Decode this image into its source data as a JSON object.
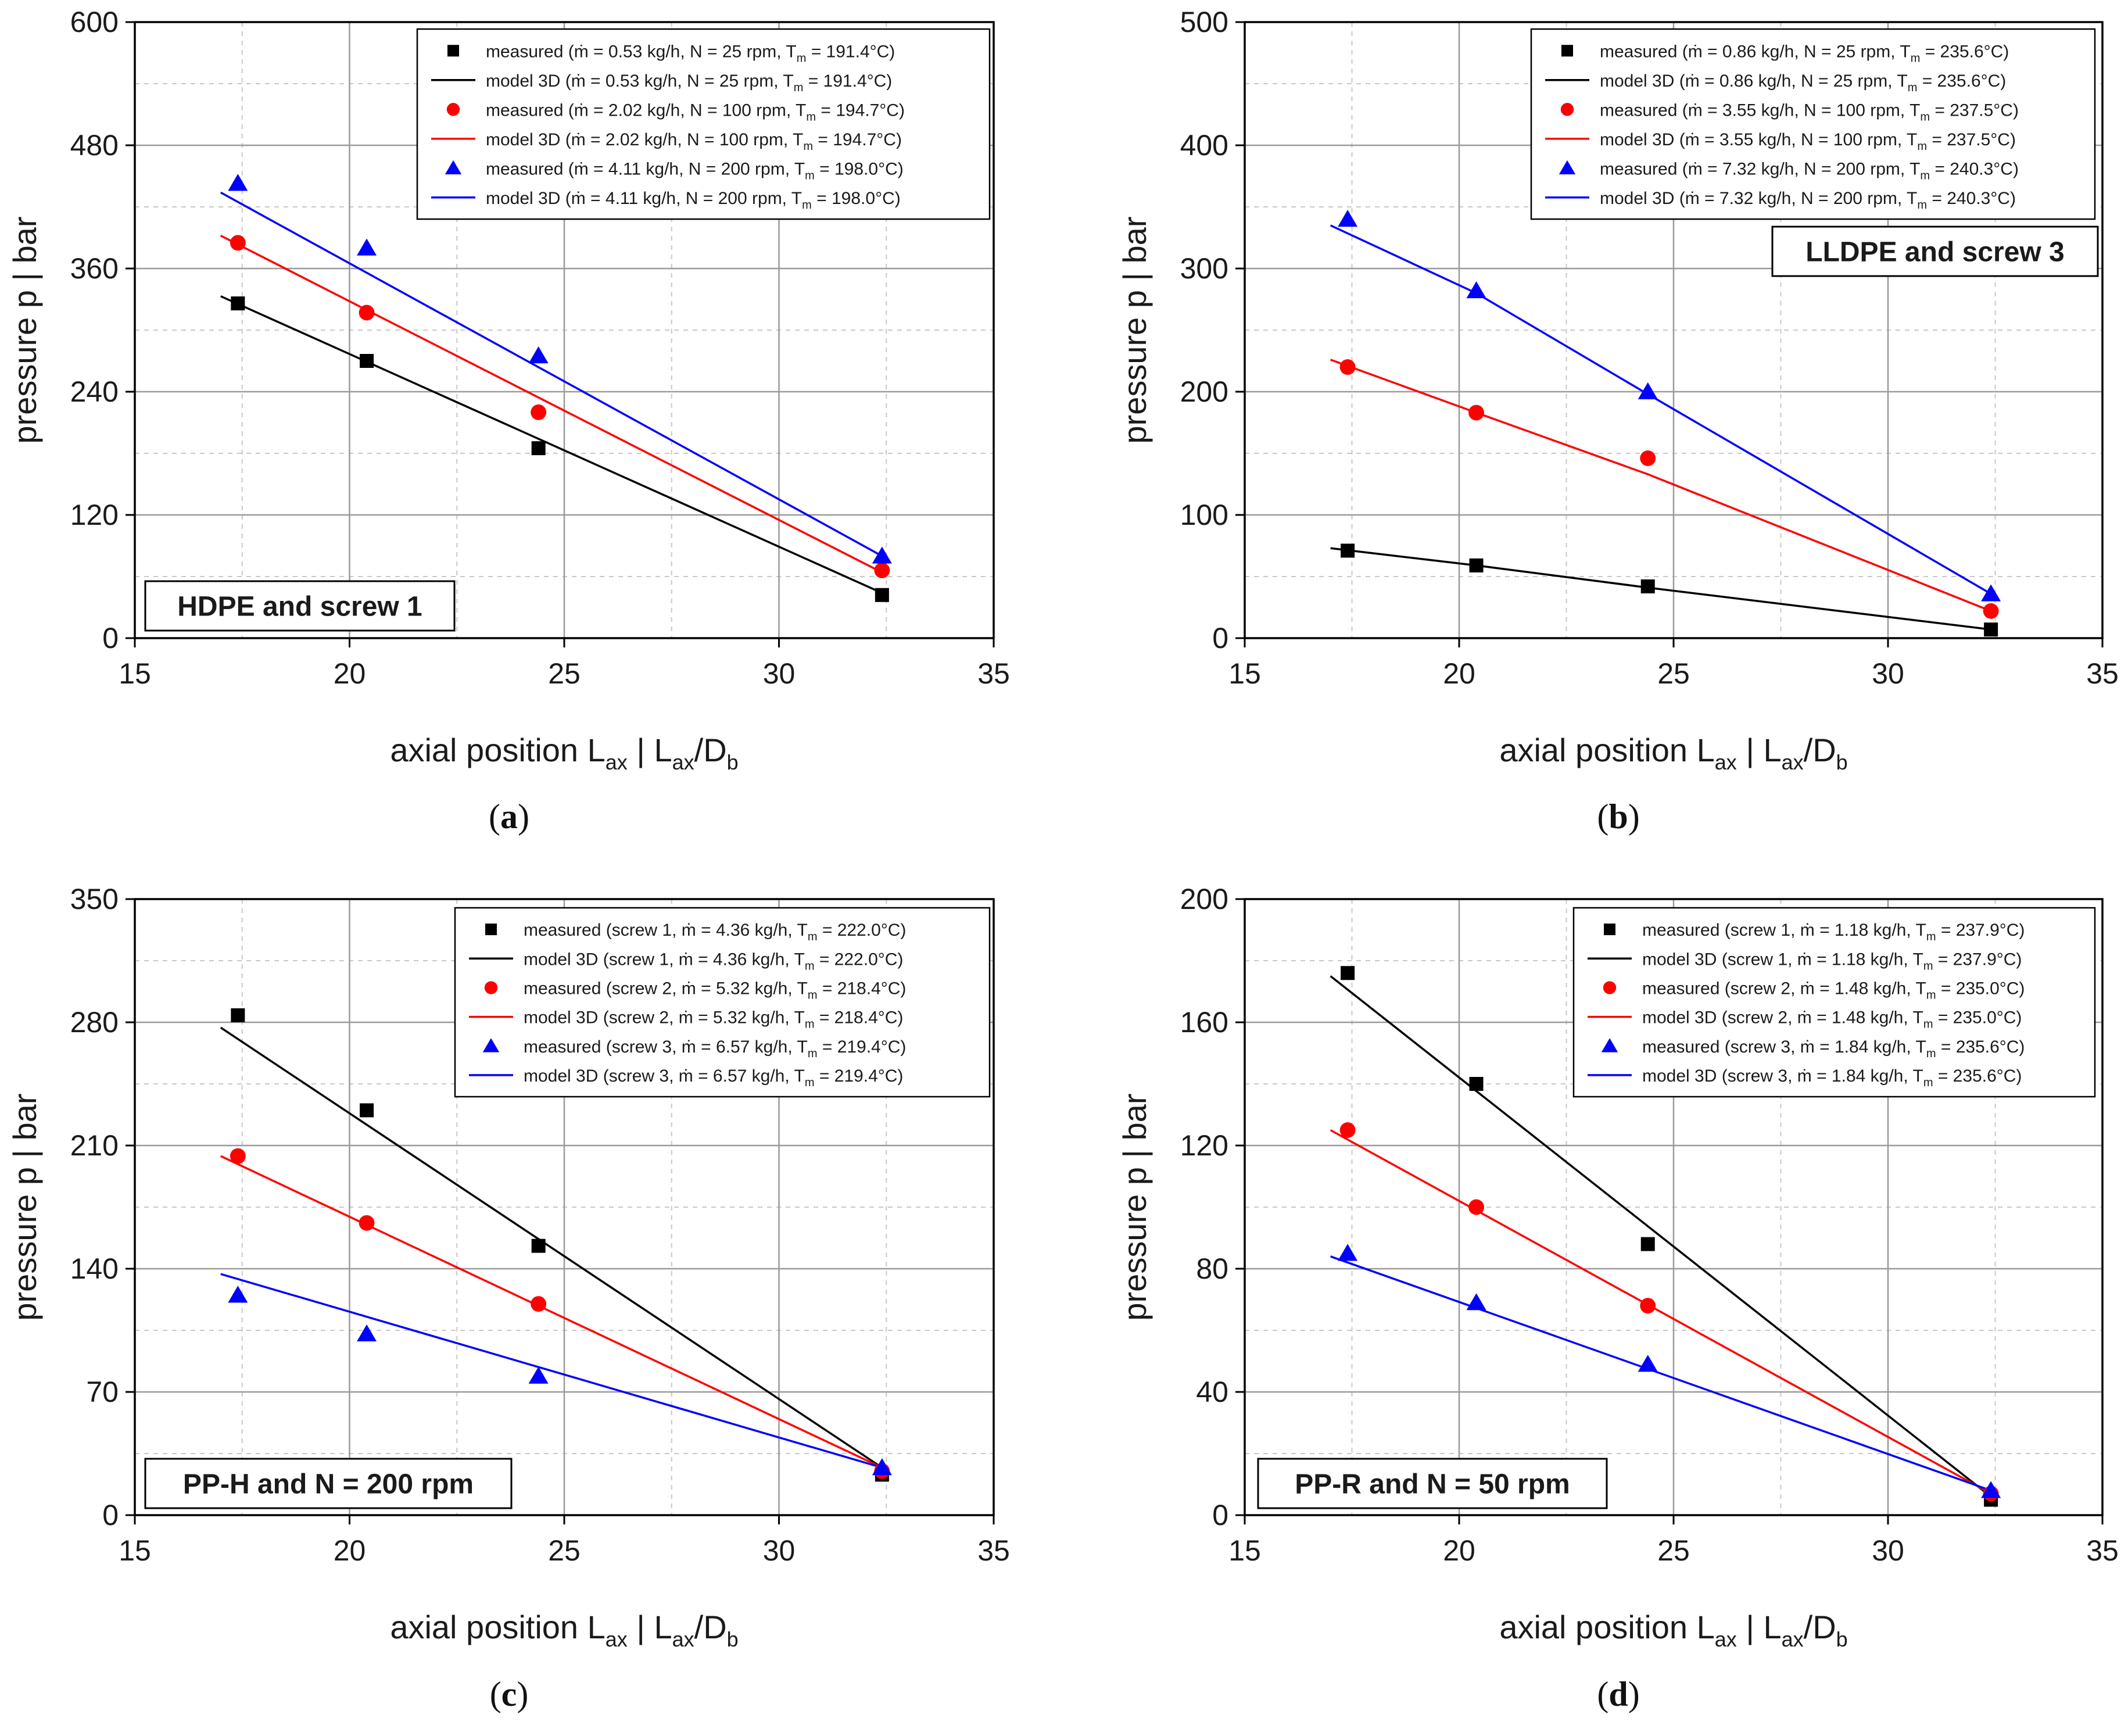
{
  "chart_data": [
    {
      "type": "scatter",
      "panel_label": "a",
      "annotation": "HDPE and screw 1",
      "xlabel": {
        "main": "axial position L",
        "sub1": "ax",
        "sep": "|",
        "frac": "L",
        "sub2": "ax",
        "slash": "/D",
        "sub3": "b"
      },
      "ylabel": "pressure p  |  bar",
      "xlim": [
        15,
        35
      ],
      "ylim": [
        0,
        600
      ],
      "xticks": [
        15,
        20,
        25,
        30,
        35
      ],
      "yticks": [
        0,
        120,
        240,
        360,
        480,
        600
      ],
      "grid": true,
      "legend_position": "top-right",
      "series": [
        {
          "name": "measured (ṁ = 0.53 kg/h, N = 25 rpm, T",
          "sub": "m",
          "tail": " = 191.4°C)",
          "kind": "measured",
          "marker": "square",
          "color": "#000000",
          "x": [
            17.4,
            20.4,
            24.4,
            32.4
          ],
          "y": [
            326,
            270,
            185,
            42
          ]
        },
        {
          "name": "model 3D (ṁ = 0.53 kg/h, N = 25 rpm, T",
          "sub": "m",
          "tail": " = 191.4°C)",
          "kind": "model",
          "color": "#000000",
          "x": [
            17.0,
            32.4
          ],
          "y": [
            333,
            44
          ]
        },
        {
          "name": "measured (ṁ = 2.02 kg/h, N = 100 rpm, T",
          "sub": "m",
          "tail": " = 194.7°C)",
          "kind": "measured",
          "marker": "circle",
          "color": "#ff0000",
          "x": [
            17.4,
            20.4,
            24.4,
            32.4
          ],
          "y": [
            385,
            317,
            220,
            66
          ]
        },
        {
          "name": "model 3D (ṁ = 2.02 kg/h, N = 100 rpm, T",
          "sub": "m",
          "tail": " = 194.7°C)",
          "kind": "model",
          "color": "#ff0000",
          "x": [
            17.0,
            32.4
          ],
          "y": [
            392,
            64
          ]
        },
        {
          "name": "measured (ṁ = 4.11 kg/h, N = 200 rpm, T",
          "sub": "m",
          "tail": " = 198.0°C)",
          "kind": "measured",
          "marker": "triangle",
          "color": "#0000ff",
          "x": [
            17.4,
            20.4,
            24.4,
            32.4
          ],
          "y": [
            443,
            380,
            275,
            80
          ]
        },
        {
          "name": "model 3D (ṁ = 4.11 kg/h, N = 200 rpm, T",
          "sub": "m",
          "tail": " = 198.0°C)",
          "kind": "model",
          "color": "#0000ff",
          "x": [
            17.0,
            32.4
          ],
          "y": [
            434,
            80
          ]
        }
      ]
    },
    {
      "type": "scatter",
      "panel_label": "b",
      "annotation": "LLDPE and screw 3",
      "xlabel": {
        "main": "axial position L",
        "sub1": "ax",
        "sep": "|",
        "frac": "L",
        "sub2": "ax",
        "slash": "/D",
        "sub3": "b"
      },
      "ylabel": "pressure p  |  bar",
      "xlim": [
        15,
        35
      ],
      "ylim": [
        0,
        500
      ],
      "xticks": [
        15,
        20,
        25,
        30,
        35
      ],
      "yticks": [
        0,
        100,
        200,
        300,
        400,
        500
      ],
      "grid": true,
      "legend_position": "top-right",
      "series": [
        {
          "name": "measured (ṁ = 0.86 kg/h, N = 25 rpm, T",
          "sub": "m",
          "tail": " = 235.6°C)",
          "kind": "measured",
          "marker": "square",
          "color": "#000000",
          "x": [
            17.4,
            20.4,
            24.4,
            32.4
          ],
          "y": [
            71,
            59,
            42,
            7
          ]
        },
        {
          "name": "model 3D (ṁ = 0.86 kg/h, N = 25 rpm, T",
          "sub": "m",
          "tail": " = 235.6°C)",
          "kind": "model",
          "color": "#000000",
          "x": [
            17.0,
            20.4,
            24.4,
            32.4
          ],
          "y": [
            73,
            59,
            41,
            7
          ]
        },
        {
          "name": "measured (ṁ = 3.55 kg/h, N = 100 rpm, T",
          "sub": "m",
          "tail": " = 237.5°C)",
          "kind": "measured",
          "marker": "circle",
          "color": "#ff0000",
          "x": [
            17.4,
            20.4,
            24.4,
            32.4
          ],
          "y": [
            220,
            183,
            146,
            22
          ]
        },
        {
          "name": "model 3D (ṁ = 3.55 kg/h, N = 100 rpm, T",
          "sub": "m",
          "tail": " = 237.5°C)",
          "kind": "model",
          "color": "#ff0000",
          "x": [
            17.0,
            20.4,
            24.4,
            32.4
          ],
          "y": [
            226,
            183,
            133,
            22
          ]
        },
        {
          "name": "measured (ṁ = 7.32 kg/h, N = 200 rpm, T",
          "sub": "m",
          "tail": " = 240.3°C)",
          "kind": "measured",
          "marker": "triangle",
          "color": "#0000ff",
          "x": [
            17.4,
            20.4,
            24.4,
            32.4
          ],
          "y": [
            340,
            282,
            200,
            36
          ]
        },
        {
          "name": "model 3D (ṁ = 7.32 kg/h, N = 200 rpm, T",
          "sub": "m",
          "tail": " = 240.3°C)",
          "kind": "model",
          "color": "#0000ff",
          "x": [
            17.0,
            20.4,
            24.4,
            32.4
          ],
          "y": [
            335,
            280,
            198,
            36
          ]
        }
      ]
    },
    {
      "type": "scatter",
      "panel_label": "c",
      "annotation": "PP-H and N = 200 rpm",
      "xlabel": {
        "main": "axial position L",
        "sub1": "ax",
        "sep": "|",
        "frac": "L",
        "sub2": "ax",
        "slash": "/D",
        "sub3": "b"
      },
      "ylabel": "pressure p  |  bar",
      "xlim": [
        15,
        35
      ],
      "ylim": [
        0,
        350
      ],
      "xticks": [
        15,
        20,
        25,
        30,
        35
      ],
      "yticks": [
        0,
        70,
        140,
        210,
        280,
        350
      ],
      "grid": true,
      "legend_position": "top-right",
      "series": [
        {
          "name": "measured (screw 1, ṁ = 4.36 kg/h, T",
          "sub": "m",
          "tail": " = 222.0°C)",
          "kind": "measured",
          "marker": "square",
          "color": "#000000",
          "x": [
            17.4,
            20.4,
            24.4,
            32.4
          ],
          "y": [
            284,
            230,
            153,
            23
          ]
        },
        {
          "name": "model 3D (screw 1, ṁ = 4.36 kg/h, T",
          "sub": "m",
          "tail": " = 222.0°C)",
          "kind": "model",
          "color": "#000000",
          "x": [
            17.0,
            32.4
          ],
          "y": [
            277,
            27
          ]
        },
        {
          "name": "measured (screw 2, ṁ = 5.32 kg/h, T",
          "sub": "m",
          "tail": " = 218.4°C)",
          "kind": "measured",
          "marker": "circle",
          "color": "#ff0000",
          "x": [
            17.4,
            20.4,
            24.4,
            32.4
          ],
          "y": [
            204,
            166,
            120,
            25
          ]
        },
        {
          "name": "model 3D (screw 2, ṁ = 5.32 kg/h, T",
          "sub": "m",
          "tail": " = 218.4°C)",
          "kind": "model",
          "color": "#ff0000",
          "x": [
            17.0,
            32.4
          ],
          "y": [
            204,
            27
          ]
        },
        {
          "name": "measured (screw 3, ṁ = 6.57 kg/h,  T",
          "sub": "m",
          "tail": " = 219.4°C)",
          "kind": "measured",
          "marker": "triangle",
          "color": "#0000ff",
          "x": [
            17.4,
            20.4,
            24.4,
            32.4
          ],
          "y": [
            125,
            103,
            79,
            27
          ]
        },
        {
          "name": "model 3D (screw 3, ṁ = 6.57 kg/h,  T",
          "sub": "m",
          "tail": " = 219.4°C)",
          "kind": "model",
          "color": "#0000ff",
          "x": [
            17.0,
            32.4
          ],
          "y": [
            137,
            27
          ]
        }
      ]
    },
    {
      "type": "scatter",
      "panel_label": "d",
      "annotation": "PP-R and N = 50 rpm",
      "xlabel": {
        "main": "axial position L",
        "sub1": "ax",
        "sep": "|",
        "frac": "L",
        "sub2": "ax",
        "slash": "/D",
        "sub3": "b"
      },
      "ylabel": "pressure p  |  bar",
      "xlim": [
        15,
        35
      ],
      "ylim": [
        0,
        200
      ],
      "xticks": [
        15,
        20,
        25,
        30,
        35
      ],
      "yticks": [
        0,
        40,
        80,
        120,
        160,
        200
      ],
      "grid": true,
      "legend_position": "top-right",
      "series": [
        {
          "name": "measured (screw 1, ṁ = 1.18 kg/h, T",
          "sub": "m",
          "tail": " = 237.9°C)",
          "kind": "measured",
          "marker": "square",
          "color": "#000000",
          "x": [
            17.4,
            20.4,
            24.4,
            32.4
          ],
          "y": [
            176,
            140,
            88,
            5
          ]
        },
        {
          "name": "model 3D (screw 1, ṁ = 1.18 kg/h, T",
          "sub": "m",
          "tail": " = 237.9°C)",
          "kind": "model",
          "color": "#000000",
          "x": [
            17.0,
            32.4
          ],
          "y": [
            175,
            6
          ]
        },
        {
          "name": "measured (screw 2, ṁ = 1.48 kg/h, T",
          "sub": "m",
          "tail": " = 235.0°C)",
          "kind": "measured",
          "marker": "circle",
          "color": "#ff0000",
          "x": [
            17.4,
            20.4,
            24.4,
            32.4
          ],
          "y": [
            125,
            100,
            68,
            7
          ]
        },
        {
          "name": "model 3D (screw 2, ṁ = 1.48 kg/h, T",
          "sub": "m",
          "tail": " = 235.0°C)",
          "kind": "model",
          "color": "#ff0000",
          "x": [
            17.0,
            32.4
          ],
          "y": [
            125,
            7
          ]
        },
        {
          "name": "measured (screw 3, ṁ = 1.84 kg/h,  T",
          "sub": "m",
          "tail": " = 235.6°C)",
          "kind": "measured",
          "marker": "triangle",
          "color": "#0000ff",
          "x": [
            17.4,
            20.4,
            24.4,
            32.4
          ],
          "y": [
            85,
            69,
            49,
            8
          ]
        },
        {
          "name": "model 3D (screw 3, ṁ = 1.84 kg/h,  T",
          "sub": "m",
          "tail": " = 235.6°C)",
          "kind": "model",
          "color": "#0000ff",
          "x": [
            17.0,
            32.4
          ],
          "y": [
            84,
            8
          ]
        }
      ]
    }
  ]
}
